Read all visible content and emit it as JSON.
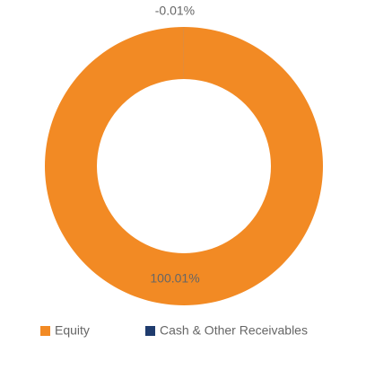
{
  "chart_data": {
    "type": "donut",
    "categories": [
      "Equity",
      "Cash & Other Receivables"
    ],
    "values": [
      100.01,
      -0.01
    ],
    "value_labels": [
      "100.01%",
      "-0.01%"
    ],
    "colors": [
      "#f28a24",
      "#1f3c6e"
    ],
    "legend": "bottom"
  }
}
